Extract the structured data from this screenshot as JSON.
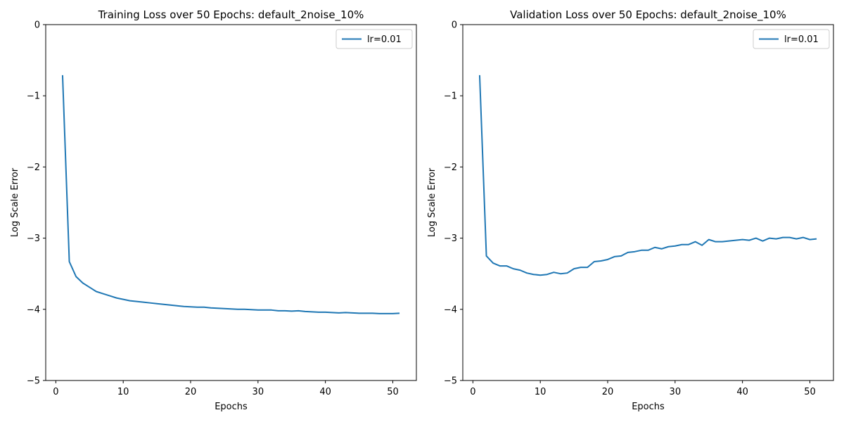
{
  "chart_data": [
    {
      "type": "line",
      "title": "Training Loss over 50 Epochs: default_2noise_10%",
      "xlabel": "Epochs",
      "ylabel": "Log Scale Error",
      "xlim": [
        -1.5,
        53.5
      ],
      "ylim": [
        -5,
        0
      ],
      "xticks": [
        0,
        10,
        20,
        30,
        40,
        50
      ],
      "yticks": [
        0,
        -1,
        -2,
        -3,
        -4,
        -5
      ],
      "legend_position": "upper right",
      "grid": false,
      "series": [
        {
          "name": "lr=0.01",
          "color": "#1f77b4",
          "x": [
            1,
            2,
            3,
            4,
            5,
            6,
            7,
            8,
            9,
            10,
            11,
            12,
            13,
            14,
            15,
            16,
            17,
            18,
            19,
            20,
            21,
            22,
            23,
            24,
            25,
            26,
            27,
            28,
            29,
            30,
            31,
            32,
            33,
            34,
            35,
            36,
            37,
            38,
            39,
            40,
            41,
            42,
            43,
            44,
            45,
            46,
            47,
            48,
            49,
            50,
            51
          ],
          "y": [
            -0.71,
            -3.33,
            -3.54,
            -3.63,
            -3.69,
            -3.75,
            -3.78,
            -3.81,
            -3.84,
            -3.86,
            -3.88,
            -3.89,
            -3.9,
            -3.91,
            -3.92,
            -3.93,
            -3.94,
            -3.95,
            -3.96,
            -3.965,
            -3.97,
            -3.97,
            -3.98,
            -3.985,
            -3.99,
            -3.995,
            -4.0,
            -4.0,
            -4.005,
            -4.01,
            -4.01,
            -4.01,
            -4.02,
            -4.02,
            -4.025,
            -4.02,
            -4.03,
            -4.035,
            -4.04,
            -4.04,
            -4.045,
            -4.05,
            -4.045,
            -4.05,
            -4.055,
            -4.055,
            -4.055,
            -4.06,
            -4.06,
            -4.06,
            -4.055
          ]
        }
      ]
    },
    {
      "type": "line",
      "title": "Validation Loss over 50 Epochs: default_2noise_10%",
      "xlabel": "Epochs",
      "ylabel": "Log Scale Error",
      "xlim": [
        -1.5,
        53.5
      ],
      "ylim": [
        -5,
        0
      ],
      "xticks": [
        0,
        10,
        20,
        30,
        40,
        50
      ],
      "yticks": [
        0,
        -1,
        -2,
        -3,
        -4,
        -5
      ],
      "legend_position": "upper right",
      "grid": false,
      "series": [
        {
          "name": "lr=0.01",
          "color": "#1f77b4",
          "x": [
            1,
            2,
            3,
            4,
            5,
            6,
            7,
            8,
            9,
            10,
            11,
            12,
            13,
            14,
            15,
            16,
            17,
            18,
            19,
            20,
            21,
            22,
            23,
            24,
            25,
            26,
            27,
            28,
            29,
            30,
            31,
            32,
            33,
            34,
            35,
            36,
            37,
            38,
            39,
            40,
            41,
            42,
            43,
            44,
            45,
            46,
            47,
            48,
            49,
            50,
            51
          ],
          "y": [
            -0.71,
            -3.25,
            -3.35,
            -3.39,
            -3.39,
            -3.43,
            -3.45,
            -3.49,
            -3.51,
            -3.52,
            -3.51,
            -3.48,
            -3.5,
            -3.49,
            -3.43,
            -3.41,
            -3.41,
            -3.33,
            -3.32,
            -3.3,
            -3.26,
            -3.25,
            -3.2,
            -3.19,
            -3.17,
            -3.17,
            -3.13,
            -3.15,
            -3.12,
            -3.11,
            -3.09,
            -3.09,
            -3.05,
            -3.1,
            -3.02,
            -3.05,
            -3.05,
            -3.04,
            -3.03,
            -3.02,
            -3.03,
            -3.0,
            -3.04,
            -3.0,
            -3.01,
            -2.99,
            -2.99,
            -3.01,
            -2.99,
            -3.02,
            -3.01
          ]
        }
      ]
    }
  ]
}
